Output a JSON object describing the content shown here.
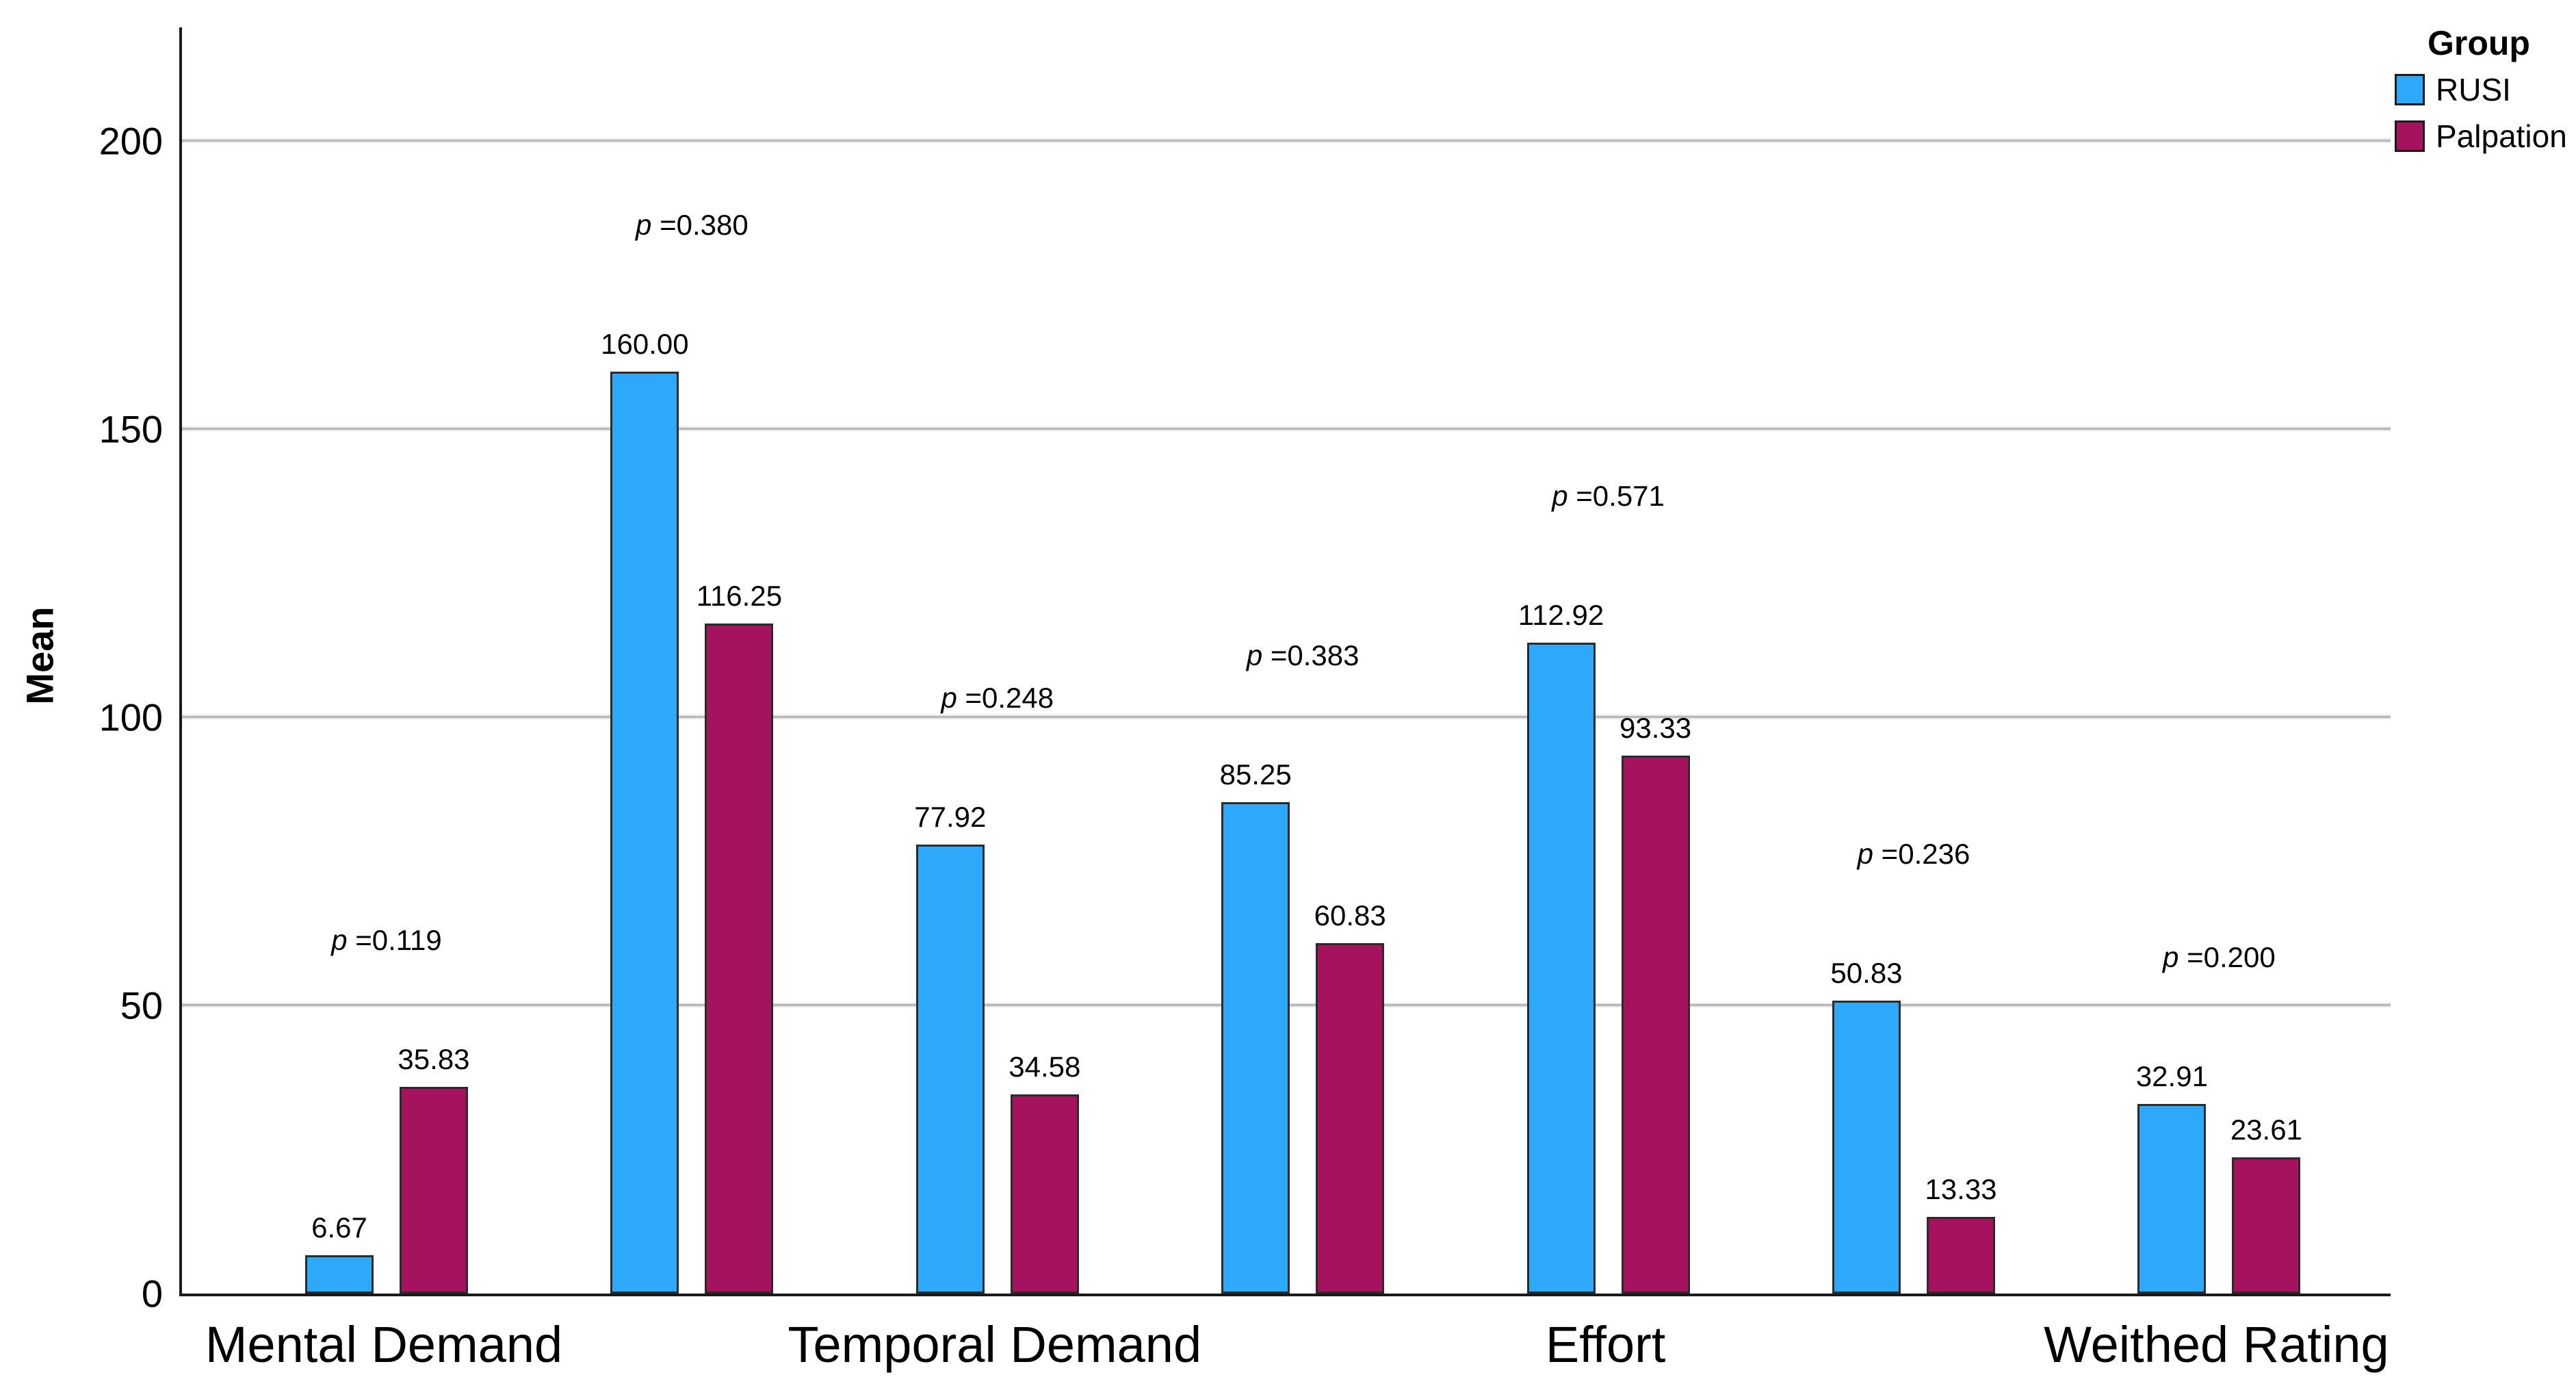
{
  "y_axis": {
    "title": "Mean",
    "tick_labels": [
      "0",
      "50",
      "100",
      "150",
      "200"
    ],
    "tick_values": [
      0,
      50,
      100,
      150,
      200
    ]
  },
  "legend": {
    "title": "Group",
    "items": [
      {
        "label": "RUSI",
        "color": "#2EA9F9"
      },
      {
        "label": "Palpation",
        "color": "#A5125E"
      }
    ]
  },
  "p_prefix": "p",
  "p_equals": " =",
  "chart_data": {
    "type": "bar",
    "title": "",
    "xlabel": "",
    "ylabel": "Mean",
    "ylim": [
      0,
      220
    ],
    "grid_values": [
      50,
      100,
      150,
      200
    ],
    "grid_on": true,
    "legend_position": "top-right",
    "categories": [
      "Mental Demand",
      "",
      "Temporal Demand",
      "",
      "Effort",
      "",
      "Weithed Rating"
    ],
    "series": [
      {
        "name": "RUSI",
        "color": "#2EA9F9",
        "values": [
          6.67,
          160.0,
          77.92,
          85.25,
          112.92,
          50.83,
          32.91
        ],
        "labels": [
          "6.67",
          "160.00",
          "77.92",
          "85.25",
          "112.92",
          "50.83",
          "32.91"
        ]
      },
      {
        "name": "Palpation",
        "color": "#A5125E",
        "values": [
          35.83,
          116.25,
          34.58,
          60.83,
          93.33,
          13.33,
          23.61
        ],
        "labels": [
          "35.83",
          "116.25",
          "34.58",
          "60.83",
          "93.33",
          "13.33",
          "23.61"
        ]
      }
    ],
    "p_values": [
      "0.119",
      "0.380",
      "0.248",
      "0.383",
      "0.571",
      "0.236",
      "0.200"
    ]
  },
  "style": {
    "bar_border": "#2B2B2B",
    "axis_color": "#1A1A1A",
    "grid_color": "#B8B8B8",
    "background": "#FFFFFF",
    "text_color": "#000000"
  }
}
